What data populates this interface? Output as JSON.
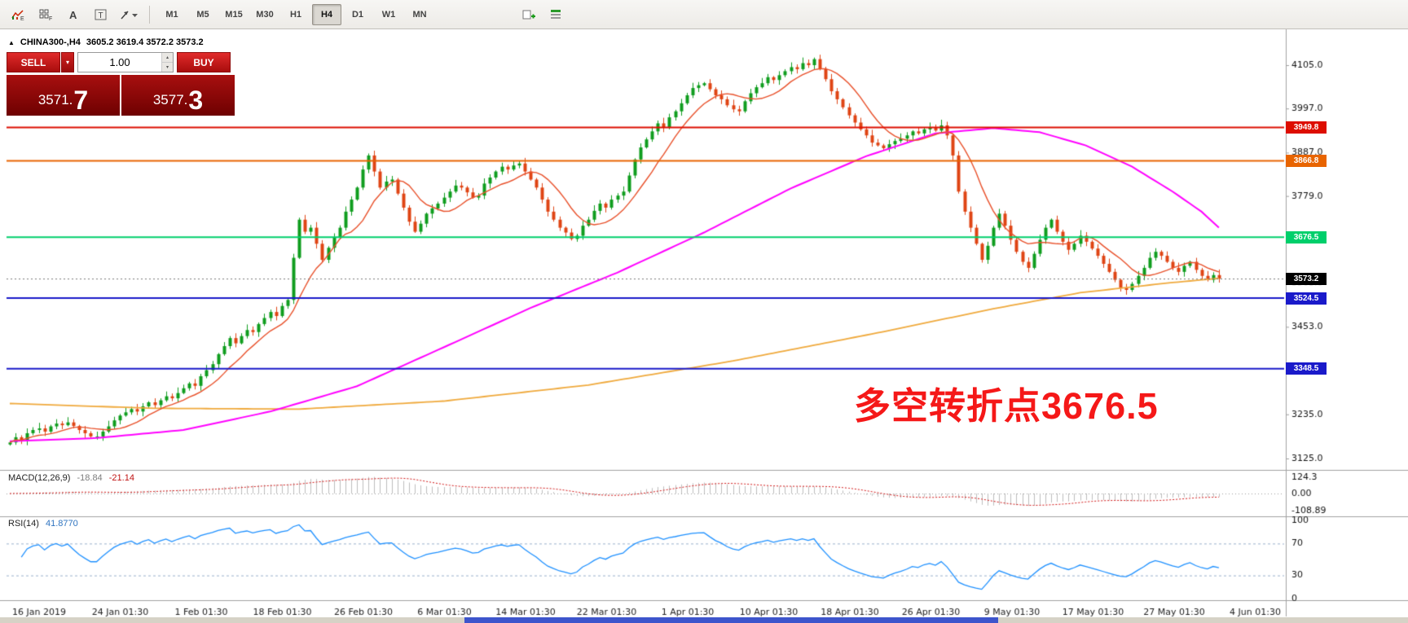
{
  "toolbar": {
    "icons": [
      "indicators-icon",
      "grid-icon",
      "text-label-icon",
      "text-box-icon",
      "draw-tools-icon"
    ],
    "icons_right": [
      "new-object-icon",
      "template-icon"
    ],
    "timeframes": [
      "M1",
      "M5",
      "M15",
      "M30",
      "H1",
      "H4",
      "D1",
      "W1",
      "MN"
    ],
    "active_timeframe": "H4"
  },
  "glyphs": {
    "spin_up": "▴",
    "spin_down": "▾",
    "dropdown": "▾"
  },
  "chart_header": {
    "marker": "▲",
    "symbol": "CHINA300-,H4",
    "ohlc": "3605.2 3619.4 3572.2 3573.2"
  },
  "trade_panel": {
    "sell_label": "SELL",
    "buy_label": "BUY",
    "volume": "1.00",
    "sell_int": "3571.",
    "sell_big": "7",
    "buy_int": "3577.",
    "buy_big": "3"
  },
  "annotation": {
    "text": "多空转折点3676.5",
    "color": "#f51818"
  },
  "indicators": {
    "macd": {
      "label": "MACD(12,26,9)",
      "value1": "-18.84",
      "value2": "-21.14",
      "axis": [
        "124.3",
        "0.00",
        "-108.89"
      ],
      "signal_color": "#d01414",
      "hist_color": "#bdbdbd"
    },
    "rsi": {
      "label": "RSI(14)",
      "value": "41.8770",
      "axis": [
        "100",
        "70",
        "30",
        "0"
      ],
      "levels": [
        70,
        30
      ],
      "line_color": "#1e90ff",
      "level_color": "#9ab0cc"
    }
  },
  "chart_data": {
    "type": "candlestick",
    "title": "CHINA300- H4",
    "grid": false,
    "y_ticks": [
      4105.0,
      3997.0,
      3887.0,
      3779.0,
      3671.0,
      3563.0,
      3453.0,
      3345.0,
      3235.0,
      3125.0
    ],
    "x_labels": [
      "16 Jan 2019",
      "24 Jan 01:30",
      "1 Feb 01:30",
      "18 Feb 01:30",
      "26 Feb 01:30",
      "6 Mar 01:30",
      "14 Mar 01:30",
      "22 Mar 01:30",
      "1 Apr 01:30",
      "10 Apr 01:30",
      "18 Apr 01:30",
      "26 Apr 01:30",
      "9 May 01:30",
      "17 May 01:30",
      "27 May 01:30",
      "4 Jun 01:30"
    ],
    "up_color": "#0f9d1e",
    "down_color": "#df4414",
    "candles": {
      "first_open": 3160,
      "closes": [
        3165,
        3178,
        3170,
        3188,
        3196,
        3200,
        3192,
        3205,
        3212,
        3208,
        3215,
        3206,
        3196,
        3188,
        3180,
        3180,
        3192,
        3205,
        3220,
        3232,
        3240,
        3248,
        3242,
        3255,
        3265,
        3258,
        3270,
        3280,
        3275,
        3288,
        3300,
        3312,
        3306,
        3330,
        3345,
        3360,
        3385,
        3405,
        3425,
        3412,
        3430,
        3445,
        3440,
        3460,
        3475,
        3490,
        3480,
        3505,
        3520,
        3625,
        3720,
        3690,
        3700,
        3660,
        3620,
        3650,
        3675,
        3700,
        3740,
        3770,
        3800,
        3845,
        3880,
        3840,
        3800,
        3815,
        3820,
        3785,
        3750,
        3715,
        3690,
        3710,
        3735,
        3748,
        3760,
        3775,
        3790,
        3805,
        3800,
        3788,
        3775,
        3780,
        3810,
        3825,
        3840,
        3852,
        3845,
        3855,
        3860,
        3840,
        3820,
        3800,
        3770,
        3740,
        3720,
        3700,
        3688,
        3672,
        3680,
        3705,
        3720,
        3742,
        3760,
        3750,
        3770,
        3780,
        3790,
        3830,
        3870,
        3900,
        3920,
        3940,
        3960,
        3950,
        3975,
        3990,
        4010,
        4030,
        4048,
        4055,
        4060,
        4045,
        4030,
        4020,
        4005,
        3995,
        3990,
        4015,
        4035,
        4050,
        4060,
        4075,
        4068,
        4080,
        4090,
        4100,
        4095,
        4110,
        4105,
        4120,
        4095,
        4070,
        4040,
        4020,
        4000,
        3980,
        3962,
        3945,
        3930,
        3912,
        3905,
        3898,
        3908,
        3916,
        3922,
        3930,
        3940,
        3935,
        3945,
        3950,
        3942,
        3955,
        3930,
        3880,
        3790,
        3740,
        3700,
        3660,
        3620,
        3655,
        3700,
        3735,
        3705,
        3670,
        3640,
        3615,
        3600,
        3635,
        3670,
        3700,
        3720,
        3690,
        3665,
        3645,
        3660,
        3680,
        3665,
        3648,
        3630,
        3610,
        3590,
        3570,
        3550,
        3545,
        3560,
        3580,
        3600,
        3625,
        3640,
        3630,
        3615,
        3600,
        3590,
        3605,
        3615,
        3595,
        3580,
        3570,
        3582,
        3573.2
      ]
    },
    "hlines": [
      {
        "price": 3949.8,
        "label": "3949.8",
        "color": "#dd0e00"
      },
      {
        "price": 3866.8,
        "label": "3866.8",
        "color": "#e86400"
      },
      {
        "price": 3676.5,
        "label": "3676.5",
        "color": "#00cf6b"
      },
      {
        "price": 3524.5,
        "label": "3524.5",
        "color": "#1a1aca"
      },
      {
        "price": 3348.5,
        "label": "3348.5",
        "color": "#1a1aca"
      }
    ],
    "current_price": {
      "value": 3573.2,
      "label": "3573.2",
      "tag_bg": "#000000"
    },
    "ma_fast": {
      "period": 9,
      "color": "#e8502a"
    },
    "ma_mid": {
      "color": "#ff00ff",
      "anchors": [
        [
          0,
          3168
        ],
        [
          15,
          3176
        ],
        [
          30,
          3196
        ],
        [
          45,
          3242
        ],
        [
          60,
          3305
        ],
        [
          75,
          3402
        ],
        [
          90,
          3500
        ],
        [
          105,
          3588
        ],
        [
          120,
          3688
        ],
        [
          135,
          3798
        ],
        [
          148,
          3878
        ],
        [
          160,
          3935
        ],
        [
          170,
          3948
        ],
        [
          178,
          3938
        ],
        [
          186,
          3905
        ],
        [
          194,
          3852
        ],
        [
          201,
          3790
        ],
        [
          206,
          3740
        ],
        [
          209,
          3700
        ]
      ]
    },
    "ma_slow": {
      "color": "#efa93c",
      "anchors": [
        [
          0,
          3262
        ],
        [
          25,
          3250
        ],
        [
          50,
          3248
        ],
        [
          75,
          3268
        ],
        [
          100,
          3308
        ],
        [
          125,
          3368
        ],
        [
          150,
          3438
        ],
        [
          170,
          3498
        ],
        [
          185,
          3538
        ],
        [
          200,
          3562
        ],
        [
          209,
          3574
        ]
      ]
    }
  }
}
